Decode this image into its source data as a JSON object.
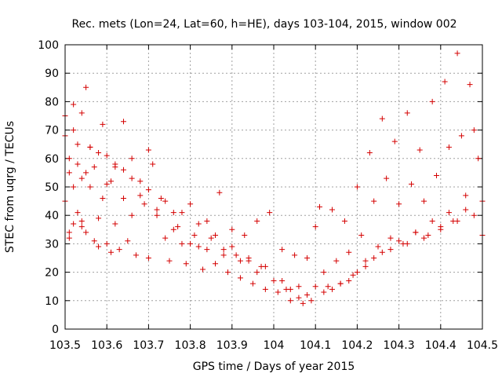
{
  "chart_data": {
    "type": "scatter",
    "title": "Rec. mets (Lon=24, Lat=60, h=HE), days 103-104, 2015, window 002",
    "xlabel": "GPS time / Days of year 2015",
    "ylabel": "STEC from uqrg / TECUs",
    "xlim": [
      103.5,
      104.5
    ],
    "ylim": [
      0,
      100
    ],
    "xticks": [
      "103.5",
      "103.6",
      "103.7",
      "103.8",
      "103.9",
      "104",
      "104.1",
      "104.2",
      "104.3",
      "104.4",
      "104.5"
    ],
    "yticks": [
      "0",
      "10",
      "20",
      "30",
      "40",
      "50",
      "60",
      "70",
      "80",
      "90",
      "100"
    ],
    "grid": true,
    "marker": "plus",
    "marker_color": "#d40000",
    "x": [
      103.5,
      103.5,
      103.5,
      103.51,
      103.51,
      103.51,
      103.51,
      103.52,
      103.52,
      103.52,
      103.53,
      103.53,
      103.53,
      103.54,
      103.54,
      103.54,
      103.55,
      103.55,
      103.55,
      103.56,
      103.56,
      103.57,
      103.57,
      103.58,
      103.58,
      103.59,
      103.59,
      103.6,
      103.6,
      103.61,
      103.61,
      103.62,
      103.62,
      103.63,
      103.64,
      103.64,
      103.65,
      103.66,
      103.66,
      103.67,
      103.68,
      103.69,
      103.7,
      103.7,
      103.71,
      103.72,
      103.73,
      103.74,
      103.75,
      103.76,
      103.77,
      103.78,
      103.79,
      103.8,
      103.81,
      103.82,
      103.83,
      103.84,
      103.85,
      103.86,
      103.87,
      103.88,
      103.89,
      103.9,
      103.91,
      103.92,
      103.93,
      103.94,
      103.95,
      103.96,
      103.97,
      103.98,
      103.99,
      104.0,
      104.01,
      104.02,
      104.03,
      104.04,
      104.05,
      104.06,
      104.07,
      104.08,
      104.09,
      104.1,
      104.11,
      104.12,
      104.13,
      104.14,
      104.15,
      104.16,
      104.17,
      104.18,
      104.19,
      104.2,
      104.21,
      104.22,
      104.23,
      104.24,
      104.25,
      104.26,
      104.27,
      104.28,
      104.29,
      104.3,
      104.31,
      104.32,
      104.33,
      104.34,
      104.35,
      104.36,
      104.37,
      104.38,
      104.39,
      104.4,
      104.41,
      104.42,
      104.43,
      104.44,
      104.45,
      104.46,
      104.47,
      104.48,
      104.49,
      104.5,
      103.52,
      103.56,
      103.6,
      103.64,
      103.68,
      103.72,
      103.76,
      103.8,
      103.84,
      103.88,
      103.92,
      103.96,
      104.0,
      104.04,
      104.08,
      104.12,
      104.16,
      104.2,
      104.24,
      104.28,
      104.32,
      104.36,
      104.4,
      104.44,
      104.48,
      103.54,
      103.58,
      103.62,
      103.66,
      103.7,
      103.74,
      103.78,
      103.82,
      103.86,
      103.9,
      103.94,
      103.98,
      104.02,
      104.06,
      104.1,
      104.14,
      104.18,
      104.22,
      104.26,
      104.3,
      104.34,
      104.38,
      104.42,
      104.46,
      104.5
    ],
    "y": [
      75,
      68,
      45,
      60,
      55,
      34,
      32,
      70,
      50,
      37,
      65,
      58,
      41,
      76,
      53,
      36,
      85,
      55,
      34,
      64,
      50,
      31,
      57,
      39,
      29,
      72,
      46,
      30,
      61,
      52,
      27,
      58,
      37,
      28,
      73,
      46,
      31,
      60,
      40,
      26,
      52,
      44,
      63,
      25,
      58,
      42,
      46,
      32,
      24,
      41,
      36,
      30,
      23,
      44,
      33,
      29,
      21,
      38,
      32,
      23,
      48,
      28,
      20,
      35,
      26,
      18,
      33,
      24,
      16,
      38,
      22,
      14,
      41,
      17,
      13,
      28,
      14,
      10,
      26,
      11,
      9,
      25,
      10,
      36,
      43,
      20,
      15,
      42,
      24,
      16,
      38,
      27,
      19,
      50,
      33,
      24,
      62,
      45,
      29,
      74,
      53,
      32,
      66,
      44,
      30,
      76,
      51,
      34,
      63,
      45,
      33,
      80,
      54,
      36,
      87,
      64,
      38,
      97,
      68,
      42,
      86,
      70,
      60,
      45,
      79,
      64,
      51,
      56,
      47,
      40,
      35,
      30,
      28,
      26,
      24,
      20,
      17,
      14,
      12,
      13,
      16,
      20,
      25,
      28,
      30,
      32,
      35,
      38,
      40,
      38,
      62,
      57,
      53,
      49,
      45,
      41,
      37,
      33,
      29,
      25,
      22,
      17,
      15,
      15,
      14,
      17,
      22,
      27,
      31,
      34,
      38,
      41,
      47,
      33
    ]
  }
}
